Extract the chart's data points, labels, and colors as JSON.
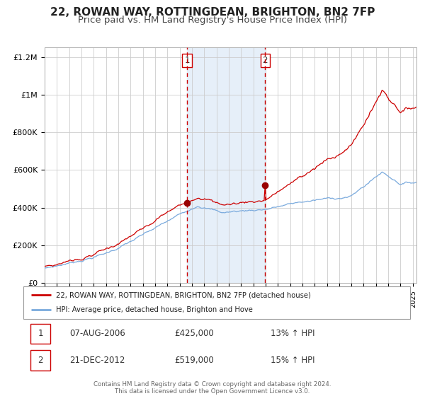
{
  "title": "22, ROWAN WAY, ROTTINGDEAN, BRIGHTON, BN2 7FP",
  "subtitle": "Price paid vs. HM Land Registry's House Price Index (HPI)",
  "title_fontsize": 11,
  "subtitle_fontsize": 9.5,
  "bg_color": "#ffffff",
  "plot_bg_color": "#ffffff",
  "grid_color": "#cccccc",
  "sale1_date": 2006.6,
  "sale1_price": 425000,
  "sale1_label": "1",
  "sale2_date": 2012.97,
  "sale2_price": 519000,
  "sale2_label": "2",
  "shade_color": "#dce9f7",
  "vline_color": "#cc0000",
  "red_line_color": "#cc0000",
  "blue_line_color": "#7aaadd",
  "marker_color": "#990000",
  "legend_line1": "22, ROWAN WAY, ROTTINGDEAN, BRIGHTON, BN2 7FP (detached house)",
  "legend_line2": "HPI: Average price, detached house, Brighton and Hove",
  "table_row1": [
    "1",
    "07-AUG-2006",
    "£425,000",
    "13% ↑ HPI"
  ],
  "table_row2": [
    "2",
    "21-DEC-2012",
    "£519,000",
    "15% ↑ HPI"
  ],
  "footer1": "Contains HM Land Registry data © Crown copyright and database right 2024.",
  "footer2": "This data is licensed under the Open Government Licence v3.0.",
  "xmin": 1995.0,
  "xmax": 2025.3,
  "ymin": 0,
  "ymax": 1250000
}
